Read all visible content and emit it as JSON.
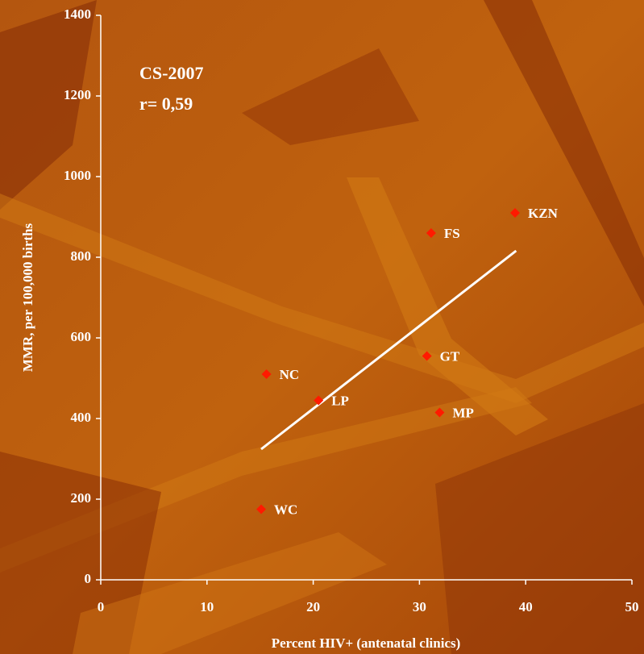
{
  "chart_data": {
    "type": "scatter",
    "annotations": [
      "CS-2007",
      "r= 0,59"
    ],
    "xlabel": "Percent HIV+ (antenatal clinics)",
    "ylabel": "MMR, per 100,000 births",
    "series": [
      {
        "color": "#ff1a00",
        "labels": [
          "KZN",
          "FS",
          "GT",
          "NC",
          "LP",
          "MP",
          "WC"
        ],
        "x": [
          39.0,
          31.1,
          30.7,
          15.6,
          20.5,
          31.9,
          15.1
        ],
        "y": [
          910,
          860,
          555,
          510,
          445,
          415,
          175
        ]
      }
    ],
    "trend": {
      "color": "#ffffff",
      "x": [
        15.1,
        39.1
      ],
      "y": [
        324,
        816
      ]
    },
    "xlim": [
      0,
      50
    ],
    "xticks": [
      0,
      10,
      20,
      30,
      40,
      50
    ],
    "ylim": [
      0,
      1400
    ],
    "yticks": [
      0,
      200,
      400,
      600,
      800,
      1000,
      1200,
      1400
    ]
  }
}
